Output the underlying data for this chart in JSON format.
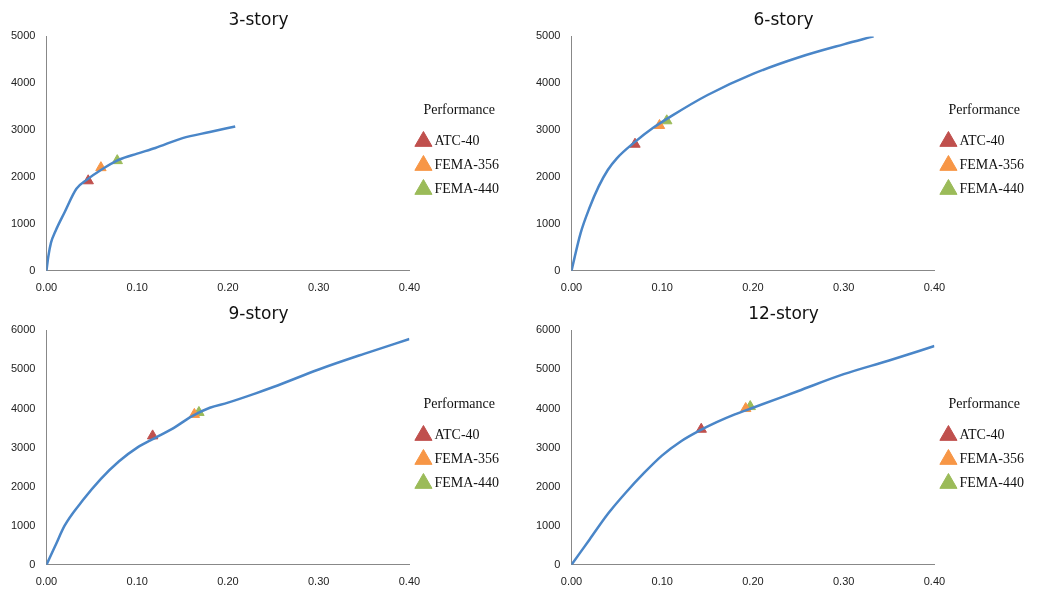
{
  "chart_data": [
    {
      "type": "line",
      "title": "3-story",
      "legend_title": "Performance",
      "legend": "right",
      "grid": false,
      "xlim": [
        0,
        0.4
      ],
      "xticks": [
        {
          "value": 0,
          "label": "0.00"
        },
        {
          "value": 0.1,
          "label": "0.10"
        },
        {
          "value": 0.2,
          "label": "0.20"
        },
        {
          "value": 0.3,
          "label": "0.30"
        },
        {
          "value": 0.4,
          "label": "0.40"
        }
      ],
      "ylim": [
        0,
        5000
      ],
      "yticks": [
        0,
        1000,
        2000,
        3000,
        4000,
        5000
      ],
      "series": [
        {
          "color": "#4a86c8",
          "marker": "none",
          "x": [
            0,
            0.002,
            0.005,
            0.01,
            0.02,
            0.033,
            0.045,
            0.06,
            0.08,
            0.1,
            0.12,
            0.15,
            0.18,
            0.208
          ],
          "values": [
            0,
            300,
            600,
            850,
            1250,
            1750,
            1950,
            2150,
            2370,
            2500,
            2620,
            2830,
            2960,
            3080
          ]
        },
        {
          "type": "scatter",
          "name": "ATC-40",
          "color": "#c0504d",
          "marker": "triangle",
          "x": [
            0.046
          ],
          "values": [
            1920
          ]
        },
        {
          "type": "scatter",
          "name": "FEMA-356",
          "color": "#f79646",
          "marker": "triangle",
          "x": [
            0.06
          ],
          "values": [
            2200
          ]
        },
        {
          "type": "scatter",
          "name": "FEMA-440",
          "color": "#9bbb59",
          "marker": "triangle",
          "x": [
            0.078
          ],
          "values": [
            2350
          ]
        }
      ]
    },
    {
      "type": "line",
      "title": "6-story",
      "legend_title": "Performance",
      "legend": "right",
      "grid": false,
      "xlim": [
        0,
        0.4
      ],
      "xticks": [
        {
          "value": 0,
          "label": "0.00"
        },
        {
          "value": 0.1,
          "label": "0.10"
        },
        {
          "value": 0.2,
          "label": "0.20"
        },
        {
          "value": 0.3,
          "label": "0.30"
        },
        {
          "value": 0.4,
          "label": "0.40"
        }
      ],
      "ylim": [
        0,
        5000
      ],
      "yticks": [
        0,
        1000,
        2000,
        3000,
        4000,
        5000
      ],
      "series": [
        {
          "color": "#4a86c8",
          "marker": "none",
          "x": [
            0,
            0.01,
            0.02,
            0.03,
            0.04,
            0.05,
            0.07,
            0.09,
            0.11,
            0.15,
            0.2,
            0.25,
            0.3,
            0.333
          ],
          "values": [
            0,
            800,
            1350,
            1800,
            2150,
            2400,
            2750,
            3050,
            3300,
            3750,
            4200,
            4550,
            4830,
            5000
          ]
        },
        {
          "type": "scatter",
          "name": "ATC-40",
          "color": "#c0504d",
          "marker": "triangle",
          "x": [
            0.07
          ],
          "values": [
            2700
          ]
        },
        {
          "type": "scatter",
          "name": "FEMA-356",
          "color": "#f79646",
          "marker": "triangle",
          "x": [
            0.097
          ],
          "values": [
            3100
          ]
        },
        {
          "type": "scatter",
          "name": "FEMA-440",
          "color": "#9bbb59",
          "marker": "triangle",
          "x": [
            0.105
          ],
          "values": [
            3200
          ]
        }
      ]
    },
    {
      "type": "line",
      "title": "9-story",
      "legend_title": "Performance",
      "legend": "right",
      "grid": false,
      "xlim": [
        0,
        0.4
      ],
      "xticks": [
        {
          "value": 0,
          "label": "0.00"
        },
        {
          "value": 0.1,
          "label": "0.10"
        },
        {
          "value": 0.2,
          "label": "0.20"
        },
        {
          "value": 0.3,
          "label": "0.30"
        },
        {
          "value": 0.4,
          "label": "0.40"
        }
      ],
      "ylim": [
        0,
        6000
      ],
      "yticks": [
        0,
        1000,
        2000,
        3000,
        4000,
        5000,
        6000
      ],
      "series": [
        {
          "color": "#4a86c8",
          "marker": "none",
          "x": [
            0,
            0.01,
            0.02,
            0.04,
            0.06,
            0.08,
            0.1,
            0.12,
            0.14,
            0.16,
            0.18,
            0.2,
            0.25,
            0.3,
            0.35,
            0.4
          ],
          "values": [
            0,
            500,
            1000,
            1650,
            2200,
            2650,
            3000,
            3250,
            3500,
            3800,
            4020,
            4150,
            4550,
            5000,
            5400,
            5780
          ]
        },
        {
          "type": "scatter",
          "name": "ATC-40",
          "color": "#c0504d",
          "marker": "triangle",
          "x": [
            0.117
          ],
          "values": [
            3300
          ]
        },
        {
          "type": "scatter",
          "name": "FEMA-356",
          "color": "#f79646",
          "marker": "triangle",
          "x": [
            0.163
          ],
          "values": [
            3850
          ]
        },
        {
          "type": "scatter",
          "name": "FEMA-440",
          "color": "#9bbb59",
          "marker": "triangle",
          "x": [
            0.168
          ],
          "values": [
            3900
          ]
        }
      ]
    },
    {
      "type": "line",
      "title": "12-story",
      "legend_title": "Performance",
      "legend": "right",
      "grid": false,
      "xlim": [
        0,
        0.4
      ],
      "xticks": [
        {
          "value": 0,
          "label": "0.00"
        },
        {
          "value": 0.1,
          "label": "0.10"
        },
        {
          "value": 0.2,
          "label": "0.20"
        },
        {
          "value": 0.3,
          "label": "0.30"
        },
        {
          "value": 0.4,
          "label": "0.40"
        }
      ],
      "ylim": [
        0,
        6000
      ],
      "yticks": [
        0,
        1000,
        2000,
        3000,
        4000,
        5000,
        6000
      ],
      "series": [
        {
          "color": "#4a86c8",
          "marker": "none",
          "x": [
            0,
            0.02,
            0.04,
            0.06,
            0.08,
            0.1,
            0.12,
            0.14,
            0.16,
            0.18,
            0.2,
            0.25,
            0.3,
            0.35,
            0.4
          ],
          "values": [
            0,
            650,
            1300,
            1850,
            2350,
            2800,
            3150,
            3420,
            3650,
            3850,
            4020,
            4450,
            4880,
            5230,
            5600
          ]
        },
        {
          "type": "scatter",
          "name": "ATC-40",
          "color": "#c0504d",
          "marker": "triangle",
          "x": [
            0.143
          ],
          "values": [
            3470
          ]
        },
        {
          "type": "scatter",
          "name": "FEMA-356",
          "color": "#f79646",
          "marker": "triangle",
          "x": [
            0.192
          ],
          "values": [
            4000
          ]
        },
        {
          "type": "scatter",
          "name": "FEMA-440",
          "color": "#9bbb59",
          "marker": "triangle",
          "x": [
            0.197
          ],
          "values": [
            4050
          ]
        }
      ]
    }
  ]
}
